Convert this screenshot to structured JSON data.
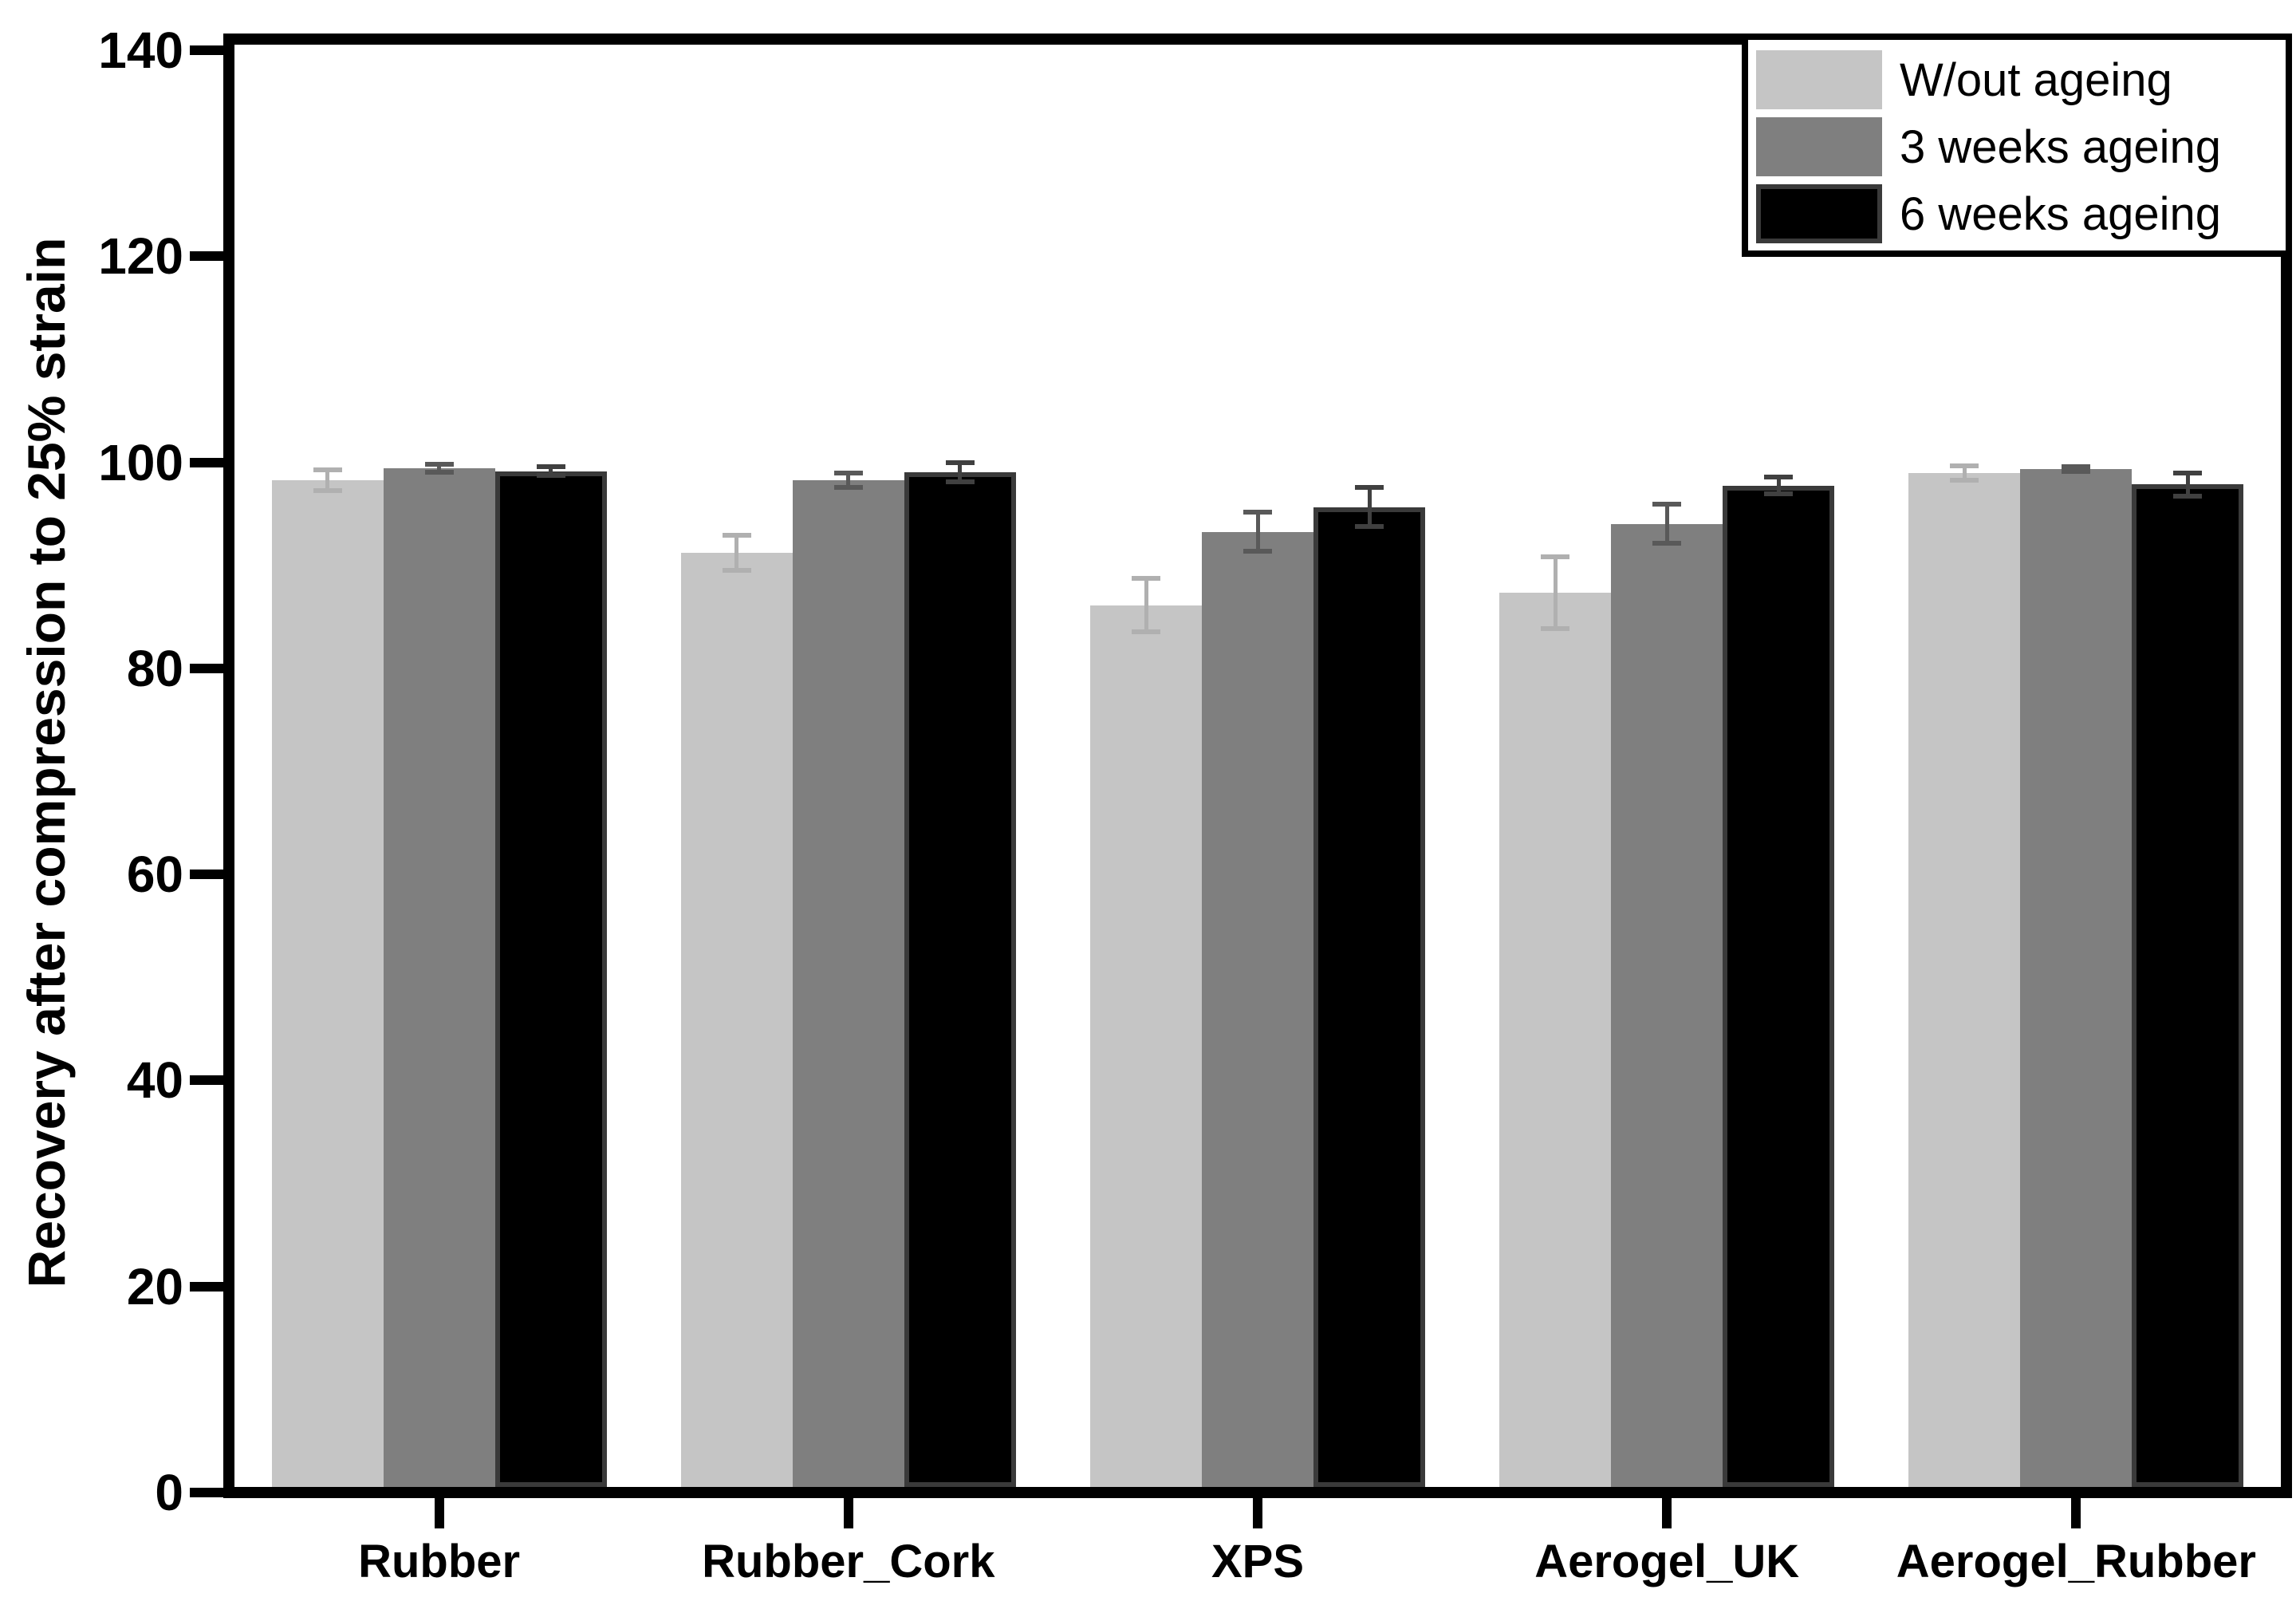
{
  "chart_data": {
    "type": "bar",
    "title": "",
    "xlabel": "",
    "ylabel": "Recovery after compression to 25% strain",
    "ylim": [
      0,
      140
    ],
    "yticks": [
      0,
      20,
      40,
      60,
      80,
      100,
      120,
      140
    ],
    "grid": false,
    "legend_position": "top-right",
    "categories": [
      "Rubber",
      "Rubber_Cork",
      "XPS",
      "Aerogel_UK",
      "Aerogel_Rubber"
    ],
    "series": [
      {
        "name": "W/out ageing",
        "color": "#c5c5c5",
        "error_color": "#b0b0b0",
        "values": [
          97.7,
          90.7,
          85.6,
          86.8,
          98.4
        ],
        "errors": [
          1.0,
          1.7,
          2.6,
          3.5,
          0.7
        ]
      },
      {
        "name": "3 weeks ageing",
        "color": "#7f7f7f",
        "error_color": "#595959",
        "values": [
          98.9,
          97.7,
          92.7,
          93.5,
          98.8
        ],
        "errors": [
          0.4,
          0.7,
          1.9,
          1.9,
          0.2
        ]
      },
      {
        "name": "6 weeks ageing",
        "color": "#000000",
        "border_color": "#3a3a3a",
        "error_color": "#404040",
        "values": [
          98.6,
          98.5,
          95.1,
          97.2,
          97.3
        ],
        "errors": [
          0.45,
          0.9,
          1.9,
          0.8,
          1.1
        ]
      }
    ]
  },
  "frame_color": "#000000"
}
